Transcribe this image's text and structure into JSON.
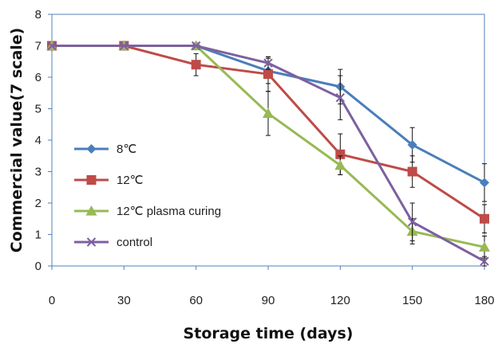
{
  "chart_data": {
    "type": "line",
    "xlabel": "Storage time  (days)",
    "ylabel": "Commercial value(7 scale)",
    "x": [
      0,
      30,
      60,
      90,
      120,
      150,
      180
    ],
    "xlim": [
      0,
      180
    ],
    "ylim": [
      0,
      8
    ],
    "yticks": [
      0,
      1,
      2,
      3,
      4,
      5,
      6,
      7,
      8
    ],
    "grid": false,
    "legend_position": "left, lower-middle",
    "series": [
      {
        "name": "8℃",
        "color": "#4a7ebb",
        "marker": "diamond",
        "values": [
          7.0,
          7.0,
          7.0,
          6.2,
          5.7,
          3.85,
          2.65
        ],
        "errors": [
          0,
          0,
          0,
          0.4,
          0.55,
          0.55,
          0.6
        ]
      },
      {
        "name": "12℃",
        "color": "#be4b48",
        "marker": "square",
        "values": [
          7.0,
          7.0,
          6.4,
          6.1,
          3.55,
          3.0,
          1.5
        ],
        "errors": [
          0,
          0,
          0.35,
          0.55,
          0.65,
          0.5,
          0.45
        ]
      },
      {
        "name": "12℃ plasma curing",
        "color": "#98b954",
        "marker": "triangle",
        "values": [
          7.0,
          7.0,
          7.0,
          4.85,
          3.2,
          1.1,
          0.6
        ],
        "errors": [
          0,
          0,
          0,
          0.7,
          0.3,
          0.4,
          0.35
        ]
      },
      {
        "name": "control",
        "color": "#7d60a0",
        "marker": "x",
        "values": [
          7.0,
          7.0,
          7.0,
          6.45,
          5.35,
          1.4,
          0.15
        ],
        "errors": [
          0,
          0,
          0,
          0.2,
          0.7,
          0.6,
          0.15
        ]
      }
    ]
  }
}
